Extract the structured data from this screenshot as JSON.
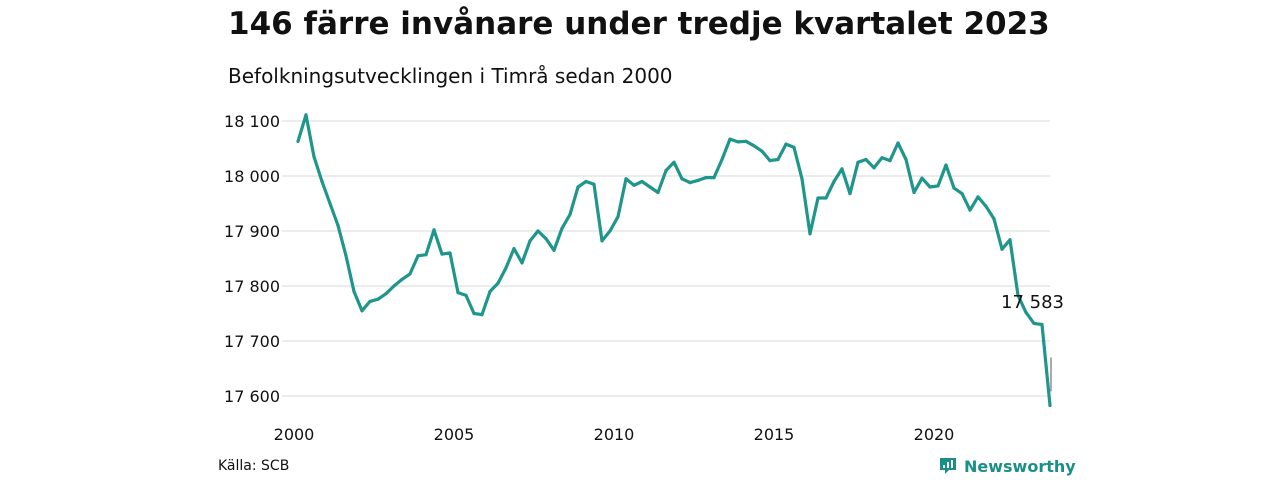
{
  "header": {
    "title": "146 färre invånare under tredje kvartalet 2023",
    "subtitle": "Befolkningsutvecklingen i Timrå sedan 2000"
  },
  "footer": {
    "source": "Källa: SCB",
    "brand": "Newsworthy"
  },
  "colors": {
    "line": "#1f968b",
    "grid": "#d9d9d9",
    "brand": "#1a8f86"
  },
  "chart_data": {
    "type": "line",
    "title": "146 färre invånare under tredje kvartalet 2023",
    "subtitle": "Befolkningsutvecklingen i Timrå sedan 2000",
    "xlabel": "",
    "ylabel": "",
    "xlim": [
      2000,
      2024
    ],
    "ylim": [
      17580,
      18120
    ],
    "grid": "horizontal",
    "x_ticks": [
      {
        "value": 2000,
        "label": "2000"
      },
      {
        "value": 2005,
        "label": "2005"
      },
      {
        "value": 2010,
        "label": "2010"
      },
      {
        "value": 2015,
        "label": "2015"
      },
      {
        "value": 2020,
        "label": "2020"
      }
    ],
    "y_ticks": [
      {
        "value": 17600,
        "label": "17 600"
      },
      {
        "value": 17700,
        "label": "17 700"
      },
      {
        "value": 17800,
        "label": "17 800"
      },
      {
        "value": 17900,
        "label": "17 900"
      },
      {
        "value": 18000,
        "label": "18 000"
      },
      {
        "value": 18100,
        "label": "18 100"
      }
    ],
    "annotation": {
      "value": 17583,
      "label": "17 583"
    },
    "x": [
      2000.0,
      2000.25,
      2000.5,
      2000.75,
      2001.0,
      2001.25,
      2001.5,
      2001.75,
      2002.0,
      2002.25,
      2002.5,
      2002.75,
      2003.0,
      2003.25,
      2003.5,
      2003.75,
      2004.0,
      2004.25,
      2004.5,
      2004.75,
      2005.0,
      2005.25,
      2005.5,
      2005.75,
      2006.0,
      2006.25,
      2006.5,
      2006.75,
      2007.0,
      2007.25,
      2007.5,
      2007.75,
      2008.0,
      2008.25,
      2008.5,
      2008.75,
      2009.0,
      2009.25,
      2009.5,
      2009.75,
      2010.0,
      2010.25,
      2010.5,
      2010.75,
      2011.0,
      2011.25,
      2011.5,
      2011.75,
      2012.0,
      2012.25,
      2012.5,
      2012.75,
      2013.0,
      2013.25,
      2013.5,
      2013.75,
      2014.0,
      2014.25,
      2014.5,
      2014.75,
      2015.0,
      2015.25,
      2015.5,
      2015.75,
      2016.0,
      2016.25,
      2016.5,
      2016.75,
      2017.0,
      2017.25,
      2017.5,
      2017.75,
      2018.0,
      2018.25,
      2018.5,
      2018.75,
      2019.0,
      2019.25,
      2019.5,
      2019.75,
      2020.0,
      2020.25,
      2020.5,
      2020.75,
      2021.0,
      2021.25,
      2021.5,
      2021.75,
      2022.0,
      2022.25,
      2022.5,
      2022.75,
      2023.0,
      2023.25,
      2023.5
    ],
    "values": [
      18063,
      18111,
      18035,
      17990,
      17950,
      17910,
      17855,
      17790,
      17755,
      17772,
      17776,
      17786,
      17800,
      17812,
      17822,
      17855,
      17857,
      17902,
      17858,
      17860,
      17788,
      17783,
      17750,
      17748,
      17790,
      17805,
      17833,
      17868,
      17842,
      17882,
      17900,
      17886,
      17865,
      17905,
      17930,
      17980,
      17990,
      17985,
      17882,
      17900,
      17926,
      17995,
      17983,
      17990,
      17980,
      17970,
      18010,
      18025,
      17995,
      17988,
      17992,
      17997,
      17997,
      18030,
      18067,
      18062,
      18063,
      18055,
      18045,
      18028,
      18030,
      18058,
      18052,
      17995,
      17895,
      17960,
      17960,
      17990,
      18013,
      17968,
      18025,
      18030,
      18015,
      18033,
      18028,
      18060,
      18030,
      17970,
      17996,
      17980,
      17982,
      18020,
      17978,
      17968,
      17938,
      17962,
      17945,
      17922,
      17867,
      17884,
      17783,
      17752,
      17732,
      17730,
      17583
    ]
  }
}
